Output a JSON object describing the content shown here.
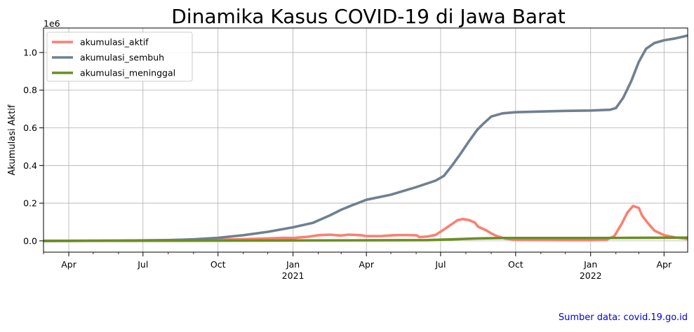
{
  "chart_data": {
    "type": "line",
    "title": "Dinamika Kasus COVID-19 di Jawa Barat",
    "xlabel": "",
    "ylabel": "Akumulasi Aktif",
    "y_scale_label": "1e6",
    "xlim": [
      "2020-03-01",
      "2022-04-30"
    ],
    "ylim": [
      -0.06,
      1.13
    ],
    "yticks": [
      0.0,
      0.2,
      0.4,
      0.6,
      0.8,
      1.0
    ],
    "ytick_labels": [
      "0.0",
      "0.2",
      "0.4",
      "0.6",
      "0.8",
      "1.0"
    ],
    "xticks_major": [
      {
        "date": "2020-04-01",
        "label": "Apr",
        "year": ""
      },
      {
        "date": "2020-07-01",
        "label": "Jul",
        "year": ""
      },
      {
        "date": "2020-10-01",
        "label": "Oct",
        "year": ""
      },
      {
        "date": "2021-01-01",
        "label": "Jan",
        "year": "2021"
      },
      {
        "date": "2021-04-01",
        "label": "Apr",
        "year": ""
      },
      {
        "date": "2021-07-01",
        "label": "Jul",
        "year": ""
      },
      {
        "date": "2021-10-01",
        "label": "Oct",
        "year": ""
      },
      {
        "date": "2022-01-01",
        "label": "Jan",
        "year": "2022"
      },
      {
        "date": "2022-04-01",
        "label": "Apr",
        "year": ""
      }
    ],
    "xticks_minor": [
      "2020-03-01",
      "2020-05-01",
      "2020-06-01",
      "2020-08-01",
      "2020-09-01",
      "2020-11-01",
      "2020-12-01",
      "2021-02-01",
      "2021-03-01",
      "2021-05-01",
      "2021-06-01",
      "2021-08-01",
      "2021-09-01",
      "2021-11-01",
      "2021-12-01",
      "2022-02-01",
      "2022-03-01"
    ],
    "grid": true,
    "legend_position": "top-left",
    "series": [
      {
        "name": "akumulasi_aktif",
        "color": "#fa8072",
        "points": [
          [
            "2020-03-01",
            0.0
          ],
          [
            "2020-06-01",
            0.001
          ],
          [
            "2020-09-01",
            0.004
          ],
          [
            "2020-10-01",
            0.006
          ],
          [
            "2020-11-01",
            0.009
          ],
          [
            "2020-12-01",
            0.013
          ],
          [
            "2020-12-20",
            0.016
          ],
          [
            "2021-01-01",
            0.015
          ],
          [
            "2021-01-20",
            0.022
          ],
          [
            "2021-02-01",
            0.03
          ],
          [
            "2021-02-15",
            0.033
          ],
          [
            "2021-03-01",
            0.028
          ],
          [
            "2021-03-10",
            0.033
          ],
          [
            "2021-03-25",
            0.03
          ],
          [
            "2021-04-01",
            0.025
          ],
          [
            "2021-04-20",
            0.026
          ],
          [
            "2021-05-05",
            0.03
          ],
          [
            "2021-05-20",
            0.031
          ],
          [
            "2021-06-02",
            0.029
          ],
          [
            "2021-06-05",
            0.02
          ],
          [
            "2021-06-15",
            0.023
          ],
          [
            "2021-06-25",
            0.032
          ],
          [
            "2021-07-05",
            0.06
          ],
          [
            "2021-07-15",
            0.09
          ],
          [
            "2021-07-22",
            0.11
          ],
          [
            "2021-07-28",
            0.116
          ],
          [
            "2021-08-05",
            0.11
          ],
          [
            "2021-08-12",
            0.097
          ],
          [
            "2021-08-16",
            0.075
          ],
          [
            "2021-08-25",
            0.058
          ],
          [
            "2021-09-01",
            0.04
          ],
          [
            "2021-09-08",
            0.025
          ],
          [
            "2021-09-18",
            0.012
          ],
          [
            "2021-10-01",
            0.006
          ],
          [
            "2021-12-01",
            0.004
          ],
          [
            "2022-01-01",
            0.004
          ],
          [
            "2022-01-20",
            0.006
          ],
          [
            "2022-01-30",
            0.025
          ],
          [
            "2022-02-08",
            0.09
          ],
          [
            "2022-02-15",
            0.15
          ],
          [
            "2022-02-22",
            0.185
          ],
          [
            "2022-03-01",
            0.175
          ],
          [
            "2022-03-05",
            0.135
          ],
          [
            "2022-03-12",
            0.095
          ],
          [
            "2022-03-20",
            0.055
          ],
          [
            "2022-04-01",
            0.03
          ],
          [
            "2022-04-15",
            0.018
          ],
          [
            "2022-04-30",
            0.01
          ]
        ]
      },
      {
        "name": "akumulasi_sembuh",
        "color": "#708090",
        "points": [
          [
            "2020-03-01",
            0.0
          ],
          [
            "2020-06-01",
            0.001
          ],
          [
            "2020-08-01",
            0.004
          ],
          [
            "2020-09-01",
            0.008
          ],
          [
            "2020-10-01",
            0.016
          ],
          [
            "2020-11-01",
            0.03
          ],
          [
            "2020-12-01",
            0.048
          ],
          [
            "2021-01-01",
            0.072
          ],
          [
            "2021-01-25",
            0.095
          ],
          [
            "2021-02-15",
            0.135
          ],
          [
            "2021-03-01",
            0.165
          ],
          [
            "2021-03-15",
            0.19
          ],
          [
            "2021-04-01",
            0.218
          ],
          [
            "2021-05-01",
            0.245
          ],
          [
            "2021-06-01",
            0.285
          ],
          [
            "2021-06-10",
            0.298
          ],
          [
            "2021-06-25",
            0.32
          ],
          [
            "2021-07-05",
            0.345
          ],
          [
            "2021-07-15",
            0.4
          ],
          [
            "2021-07-25",
            0.46
          ],
          [
            "2021-08-05",
            0.53
          ],
          [
            "2021-08-15",
            0.59
          ],
          [
            "2021-08-22",
            0.62
          ],
          [
            "2021-09-01",
            0.66
          ],
          [
            "2021-09-15",
            0.677
          ],
          [
            "2021-10-01",
            0.683
          ],
          [
            "2021-12-01",
            0.69
          ],
          [
            "2022-01-01",
            0.692
          ],
          [
            "2022-01-25",
            0.696
          ],
          [
            "2022-02-01",
            0.705
          ],
          [
            "2022-02-10",
            0.76
          ],
          [
            "2022-02-20",
            0.85
          ],
          [
            "2022-03-01",
            0.95
          ],
          [
            "2022-03-10",
            1.02
          ],
          [
            "2022-03-20",
            1.05
          ],
          [
            "2022-04-01",
            1.065
          ],
          [
            "2022-04-15",
            1.075
          ],
          [
            "2022-04-30",
            1.09
          ]
        ]
      },
      {
        "name": "akumulasi_meninggal",
        "color": "#6b8e23",
        "points": [
          [
            "2020-03-01",
            0.0
          ],
          [
            "2020-10-01",
            0.001
          ],
          [
            "2021-01-01",
            0.002
          ],
          [
            "2021-04-01",
            0.003
          ],
          [
            "2021-06-15",
            0.004
          ],
          [
            "2021-07-15",
            0.008
          ],
          [
            "2021-08-15",
            0.013
          ],
          [
            "2021-09-15",
            0.015
          ],
          [
            "2022-01-01",
            0.015
          ],
          [
            "2022-02-15",
            0.016
          ],
          [
            "2022-04-30",
            0.017
          ]
        ]
      }
    ]
  },
  "footer": {
    "source_text": "Sumber data: covid.19.go.id"
  }
}
